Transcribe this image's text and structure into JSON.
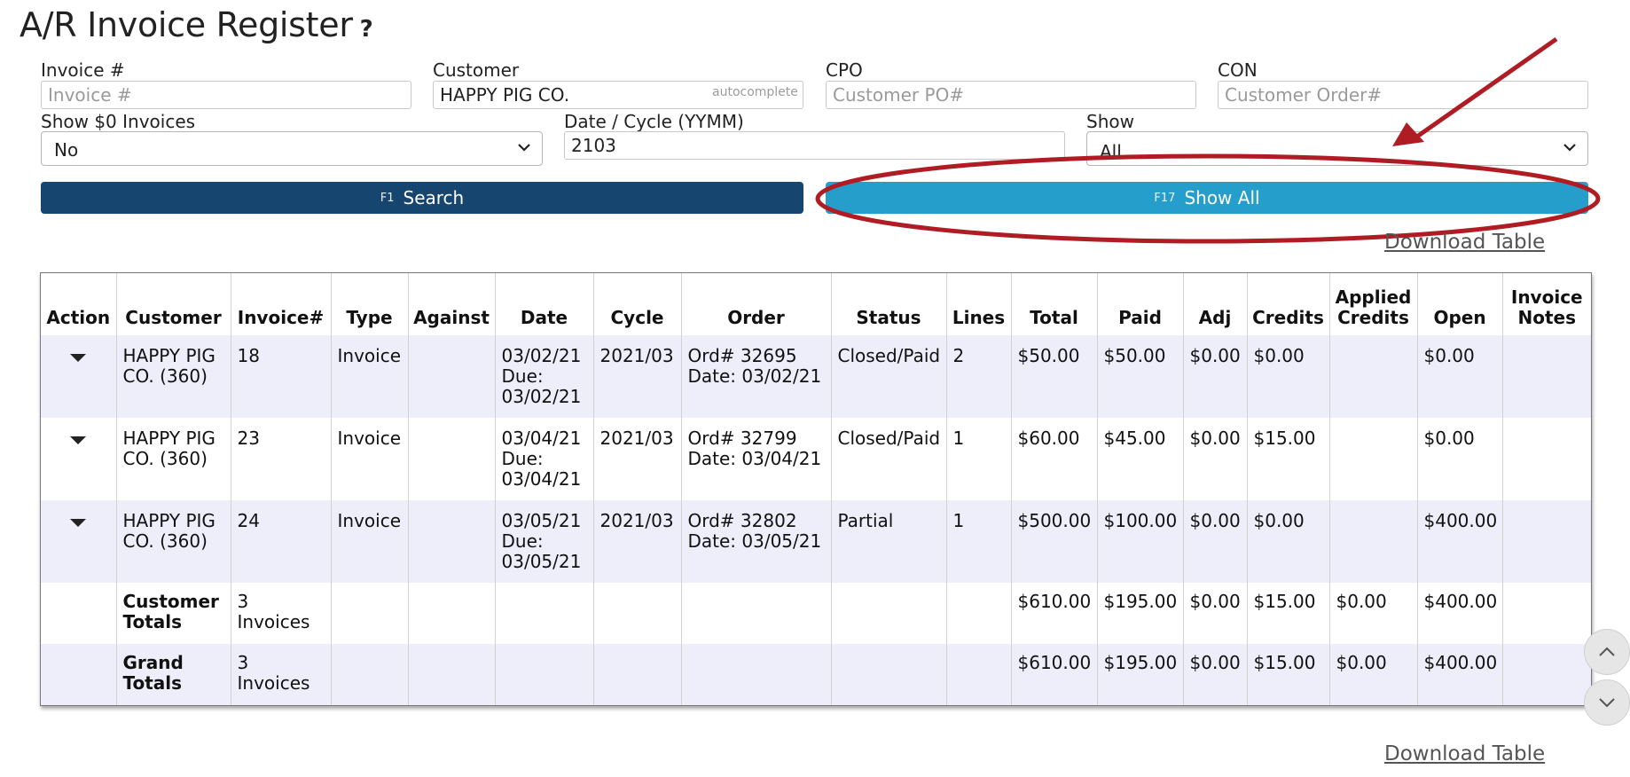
{
  "page": {
    "title": "A/R Invoice Register",
    "help_icon": "?"
  },
  "filters": {
    "invoice": {
      "label": "Invoice #",
      "placeholder": "Invoice #",
      "value": ""
    },
    "customer": {
      "label": "Customer",
      "value": "HAPPY PIG CO.",
      "hint": "autocomplete"
    },
    "cpo": {
      "label": "CPO",
      "placeholder": "Customer PO#",
      "value": ""
    },
    "con": {
      "label": "CON",
      "placeholder": "Customer Order#",
      "value": ""
    },
    "show_zero": {
      "label": "Show $0 Invoices",
      "value": "No"
    },
    "date_cycle": {
      "label": "Date / Cycle (YYMM)",
      "value": "2103"
    },
    "show": {
      "label": "Show",
      "value": "All"
    }
  },
  "buttons": {
    "search": {
      "fkey": "F1",
      "label": "Search"
    },
    "show_all": {
      "fkey": "F17",
      "label": "Show All"
    }
  },
  "links": {
    "download_top": "Download Table",
    "download_bottom": "Download Table"
  },
  "annotation": {
    "color": "#b01c24"
  },
  "table": {
    "headers": {
      "action": "Action",
      "customer": "Customer",
      "invoice": "Invoice#",
      "type": "Type",
      "against": "Against",
      "date": "Date",
      "cycle": "Cycle",
      "order": "Order",
      "status": "Status",
      "lines": "Lines",
      "total": "Total",
      "paid": "Paid",
      "adj": "Adj",
      "credits": "Credits",
      "applied_credits_1": "Applied",
      "applied_credits_2": "Credits",
      "open": "Open",
      "invoice_notes_1": "Invoice",
      "invoice_notes_2": "Notes"
    },
    "rows": [
      {
        "customer_1": "HAPPY PIG",
        "customer_2": "CO. (360)",
        "invoice": "18",
        "type": "Invoice",
        "against": "",
        "date": "03/02/21",
        "due_label": "Due:",
        "due": "03/02/21",
        "cycle": "2021/03",
        "order_1": "Ord# 32695",
        "order_2": "Date: 03/02/21",
        "status": "Closed/Paid",
        "lines": "2",
        "total": "$50.00",
        "paid": "$50.00",
        "adj": "$0.00",
        "credits": "$0.00",
        "applied_credits": "",
        "open": "$0.00",
        "notes": ""
      },
      {
        "customer_1": "HAPPY PIG",
        "customer_2": "CO. (360)",
        "invoice": "23",
        "type": "Invoice",
        "against": "",
        "date": "03/04/21",
        "due_label": "Due:",
        "due": "03/04/21",
        "cycle": "2021/03",
        "order_1": "Ord# 32799",
        "order_2": "Date: 03/04/21",
        "status": "Closed/Paid",
        "lines": "1",
        "total": "$60.00",
        "paid": "$45.00",
        "adj": "$0.00",
        "credits": "$15.00",
        "applied_credits": "",
        "open": "$0.00",
        "notes": ""
      },
      {
        "customer_1": "HAPPY PIG",
        "customer_2": "CO. (360)",
        "invoice": "24",
        "type": "Invoice",
        "against": "",
        "date": "03/05/21",
        "due_label": "Due:",
        "due": "03/05/21",
        "cycle": "2021/03",
        "order_1": "Ord# 32802",
        "order_2": "Date: 03/05/21",
        "status": "Partial",
        "lines": "1",
        "total": "$500.00",
        "paid": "$100.00",
        "adj": "$0.00",
        "credits": "$0.00",
        "applied_credits": "",
        "open": "$400.00",
        "notes": ""
      }
    ],
    "customer_totals": {
      "label_1": "Customer",
      "label_2": "Totals",
      "count_1": "3",
      "count_2": "Invoices",
      "total": "$610.00",
      "paid": "$195.00",
      "adj": "$0.00",
      "credits": "$15.00",
      "applied_credits": "$0.00",
      "open": "$400.00"
    },
    "grand_totals": {
      "label_1": "Grand",
      "label_2": "Totals",
      "count_1": "3",
      "count_2": "Invoices",
      "total": "$610.00",
      "paid": "$195.00",
      "adj": "$0.00",
      "credits": "$15.00",
      "applied_credits": "$0.00",
      "open": "$400.00"
    }
  },
  "scroll": {
    "up_icon": "chevron-up",
    "down_icon": "chevron-down"
  }
}
